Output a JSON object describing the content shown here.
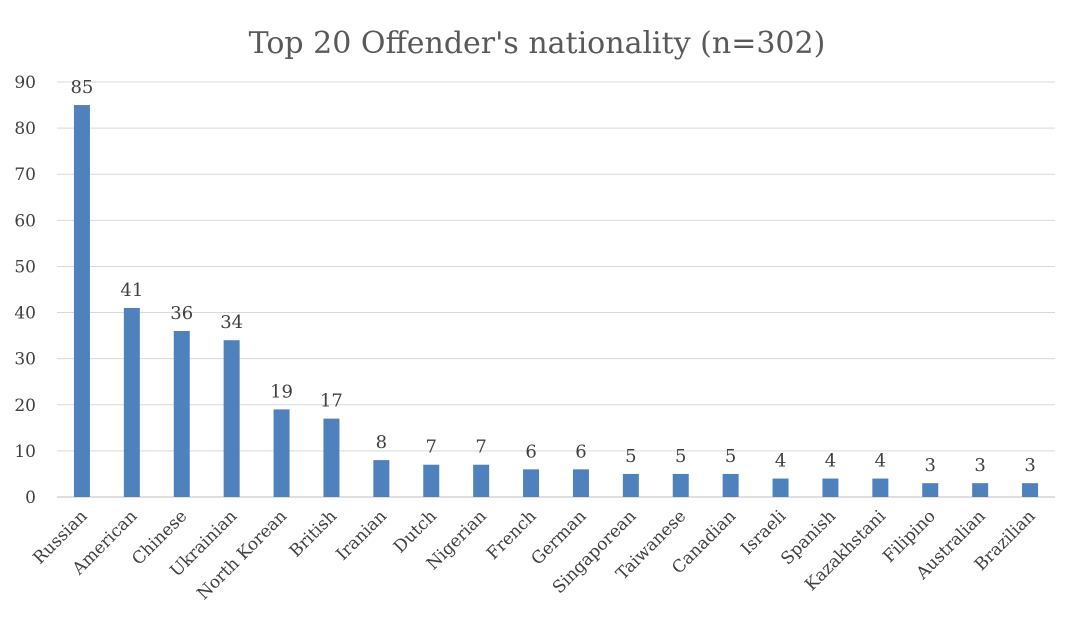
{
  "chart_data": {
    "type": "bar",
    "title": "Top 20 Offender's nationality (n=302)",
    "xlabel": "",
    "ylabel": "",
    "ylim": [
      0,
      90
    ],
    "ytick_step": 10,
    "grid": true,
    "bar_color": "#4f81bd",
    "categories": [
      "Russian",
      "American",
      "Chinese",
      "Ukrainian",
      "North Korean",
      "British",
      "Iranian",
      "Dutch",
      "Nigerian",
      "French",
      "German",
      "Singaporean",
      "Taiwanese",
      "Canadian",
      "Israeli",
      "Spanish",
      "Kazakhstani",
      "Filipino",
      "Australian",
      "Brazilian"
    ],
    "values": [
      85,
      41,
      36,
      34,
      19,
      17,
      8,
      7,
      7,
      6,
      6,
      5,
      5,
      5,
      4,
      4,
      4,
      3,
      3,
      3
    ]
  }
}
